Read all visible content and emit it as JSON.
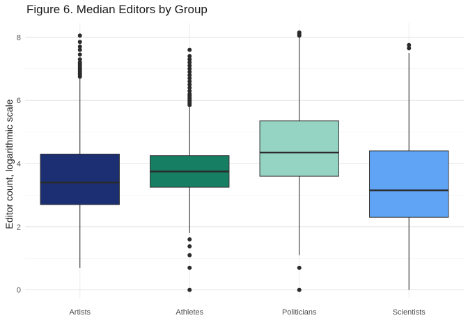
{
  "chart_data": {
    "type": "boxplot",
    "title": "Figure 6. Median Editors by Group",
    "xlabel": "",
    "ylabel": "Editor count, logarithmic scale",
    "ylim": [
      -0.25,
      8.45
    ],
    "yticks": [
      0,
      2,
      4,
      6,
      8
    ],
    "grid": true,
    "legend": "none",
    "categories": [
      "Artists",
      "Athletes",
      "Politicians",
      "Scientists"
    ],
    "boxes": [
      {
        "category": "Artists",
        "color": "#1b2f72",
        "q1": 2.7,
        "median": 3.4,
        "q3": 4.3,
        "whisker_low": 0.7,
        "whisker_high": 6.7,
        "outliers": [
          6.75,
          6.8,
          6.85,
          6.9,
          6.95,
          7.0,
          7.05,
          7.1,
          7.15,
          7.2,
          7.3,
          7.45,
          7.6,
          7.7,
          7.85,
          8.05
        ]
      },
      {
        "category": "Athletes",
        "color": "#167e63",
        "q1": 3.25,
        "median": 3.75,
        "q3": 4.25,
        "whisker_low": 1.8,
        "whisker_high": 5.8,
        "outliers": [
          0.0,
          0.7,
          1.1,
          1.38,
          1.6,
          5.85,
          5.9,
          5.95,
          6.0,
          6.05,
          6.1,
          6.15,
          6.2,
          6.3,
          6.4,
          6.5,
          6.6,
          6.7,
          6.8,
          6.9,
          7.0,
          7.1,
          7.2,
          7.3,
          7.4,
          7.6
        ]
      },
      {
        "category": "Politicians",
        "color": "#95d3c2",
        "q1": 3.6,
        "median": 4.35,
        "q3": 5.35,
        "whisker_low": 1.1,
        "whisker_high": 8.0,
        "outliers": [
          0.0,
          0.7,
          8.05,
          8.1,
          8.15
        ]
      },
      {
        "category": "Scientists",
        "color": "#60a5f5",
        "q1": 2.3,
        "median": 3.15,
        "q3": 4.4,
        "whisker_low": 0.0,
        "whisker_high": 7.5,
        "outliers": [
          7.65,
          7.75
        ]
      }
    ]
  }
}
